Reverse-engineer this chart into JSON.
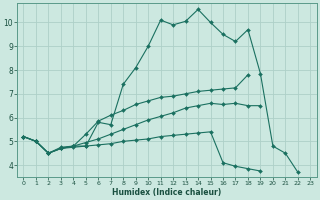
{
  "xlabel": "Humidex (Indice chaleur)",
  "background_color": "#cce8e0",
  "grid_color": "#aed0c8",
  "line_color": "#1a7060",
  "xlim": [
    -0.5,
    23.5
  ],
  "ylim": [
    3.5,
    10.8
  ],
  "xticks": [
    0,
    1,
    2,
    3,
    4,
    5,
    6,
    7,
    8,
    9,
    10,
    11,
    12,
    13,
    14,
    15,
    16,
    17,
    18,
    19,
    20,
    21,
    22,
    23
  ],
  "yticks": [
    4,
    5,
    6,
    7,
    8,
    9,
    10
  ],
  "s1": [
    5.2,
    5.0,
    4.5,
    4.7,
    4.8,
    4.8,
    5.8,
    5.7,
    7.4,
    8.1,
    9.0,
    10.1,
    9.9,
    10.05,
    10.55,
    10.0,
    9.5,
    9.2,
    9.7,
    7.85,
    4.8,
    4.5,
    3.7,
    null
  ],
  "s2": [
    5.2,
    5.0,
    4.5,
    4.75,
    4.8,
    5.3,
    5.85,
    6.1,
    6.3,
    6.55,
    6.7,
    6.85,
    6.9,
    7.0,
    7.1,
    7.15,
    7.2,
    7.25,
    7.8,
    null,
    null,
    null,
    null,
    null
  ],
  "s3": [
    5.2,
    5.0,
    4.5,
    4.7,
    4.8,
    4.95,
    5.1,
    5.3,
    5.5,
    5.7,
    5.9,
    6.05,
    6.2,
    6.4,
    6.5,
    6.6,
    6.55,
    6.6,
    6.5,
    6.5,
    null,
    null,
    null,
    null
  ],
  "s4": [
    5.2,
    5.0,
    4.5,
    4.7,
    4.75,
    4.8,
    4.85,
    4.9,
    5.0,
    5.05,
    5.1,
    5.2,
    5.25,
    5.3,
    5.35,
    5.4,
    4.1,
    3.95,
    3.85,
    3.75,
    null,
    null,
    null,
    null
  ]
}
